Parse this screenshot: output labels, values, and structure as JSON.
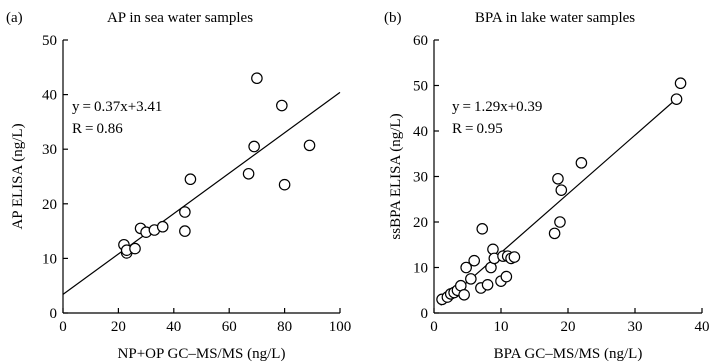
{
  "chart_data": [
    {
      "type": "scatter",
      "tag": "(a)",
      "title": "AP in sea water samples",
      "xlabel": "NP+OP GC–MS/MS (ng/L)",
      "ylabel": "AP ELISA (ng/L)",
      "xlim": [
        0,
        100
      ],
      "ylim": [
        0,
        50
      ],
      "xticks": [
        0,
        20,
        40,
        60,
        80,
        100
      ],
      "yticks": [
        0,
        10,
        20,
        30,
        40,
        50
      ],
      "annotations": [
        "y = 0.37x+3.41",
        "R = 0.86"
      ],
      "fit": {
        "slope": 0.37,
        "intercept": 3.41,
        "x_range": [
          0,
          100
        ]
      },
      "points": [
        [
          22,
          12.5
        ],
        [
          23,
          11
        ],
        [
          23,
          11.5
        ],
        [
          26,
          11.8
        ],
        [
          28,
          15.5
        ],
        [
          30,
          14.8
        ],
        [
          33,
          15.2
        ],
        [
          36,
          15.8
        ],
        [
          44,
          15
        ],
        [
          44,
          18.5
        ],
        [
          46,
          24.5
        ],
        [
          67,
          25.5
        ],
        [
          69,
          30.5
        ],
        [
          70,
          43
        ],
        [
          79,
          38
        ],
        [
          80,
          23.5
        ],
        [
          89,
          30.7
        ]
      ]
    },
    {
      "type": "scatter",
      "tag": "(b)",
      "title": "BPA in lake water samples",
      "xlabel": "BPA GC–MS/MS (ng/L)",
      "ylabel": "ssBPA ELISA (ng/L)",
      "xlim": [
        0,
        40
      ],
      "ylim": [
        0,
        60
      ],
      "xticks": [
        0,
        10,
        20,
        30,
        40
      ],
      "yticks": [
        0,
        10,
        20,
        30,
        40,
        50,
        60
      ],
      "annotations": [
        "y = 1.29x+0.39",
        "R = 0.95"
      ],
      "fit": {
        "slope": 1.29,
        "intercept": 0.39,
        "x_range": [
          1,
          36.5
        ]
      },
      "points": [
        [
          1.2,
          3
        ],
        [
          2,
          3.5
        ],
        [
          2.5,
          4.2
        ],
        [
          3,
          4.5
        ],
        [
          3.5,
          5
        ],
        [
          4,
          6
        ],
        [
          4.5,
          4
        ],
        [
          4.8,
          10
        ],
        [
          5.5,
          7.5
        ],
        [
          6,
          11.5
        ],
        [
          7,
          5.5
        ],
        [
          7.2,
          18.5
        ],
        [
          8,
          6.2
        ],
        [
          8.5,
          10
        ],
        [
          8.8,
          14
        ],
        [
          9,
          12
        ],
        [
          10,
          7
        ],
        [
          10.3,
          12.5
        ],
        [
          10.8,
          8
        ],
        [
          11,
          12.5
        ],
        [
          11.5,
          12
        ],
        [
          12,
          12.3
        ],
        [
          18,
          17.5
        ],
        [
          18.5,
          29.5
        ],
        [
          18.8,
          20
        ],
        [
          19,
          27
        ],
        [
          22,
          33
        ],
        [
          36.2,
          47
        ],
        [
          36.8,
          50.5
        ]
      ]
    }
  ]
}
